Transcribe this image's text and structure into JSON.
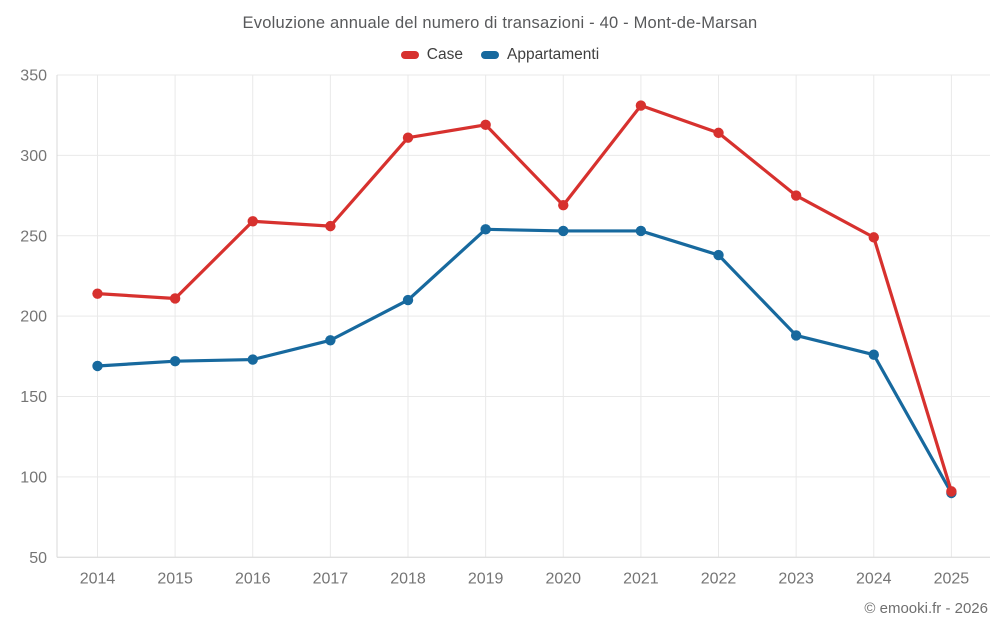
{
  "header": {
    "title": "Evoluzione annuale del numero di transazioni - 40 - Mont-de-Marsan"
  },
  "footer": {
    "copyright": "© emooki.fr - 2026"
  },
  "chart_data": {
    "type": "line",
    "title": "Evoluzione annuale del numero di transazioni - 40 - Mont-de-Marsan",
    "categories": [
      "2014",
      "2015",
      "2016",
      "2017",
      "2018",
      "2019",
      "2020",
      "2021",
      "2022",
      "2023",
      "2024",
      "2025"
    ],
    "series": [
      {
        "name": "Appartamenti",
        "color": "#17699e",
        "values": [
          169,
          172,
          173,
          185,
          210,
          254,
          253,
          253,
          238,
          188,
          176,
          90
        ]
      },
      {
        "name": "Case",
        "color": "#d7312e",
        "values": [
          214,
          211,
          259,
          256,
          311,
          319,
          269,
          331,
          314,
          275,
          249,
          91
        ]
      }
    ],
    "legend_order": [
      "Case",
      "Appartamenti"
    ],
    "xlabel": "",
    "ylabel": "",
    "ylim": [
      50,
      350
    ],
    "yticks": [
      50,
      100,
      150,
      200,
      250,
      300,
      350
    ],
    "grid": true,
    "legend_position": "top",
    "marker": "circle",
    "colors": {
      "grid": "#e9e9e9",
      "axis": "#d9d9d9",
      "tick_text": "#757575",
      "background": "#ffffff"
    }
  }
}
